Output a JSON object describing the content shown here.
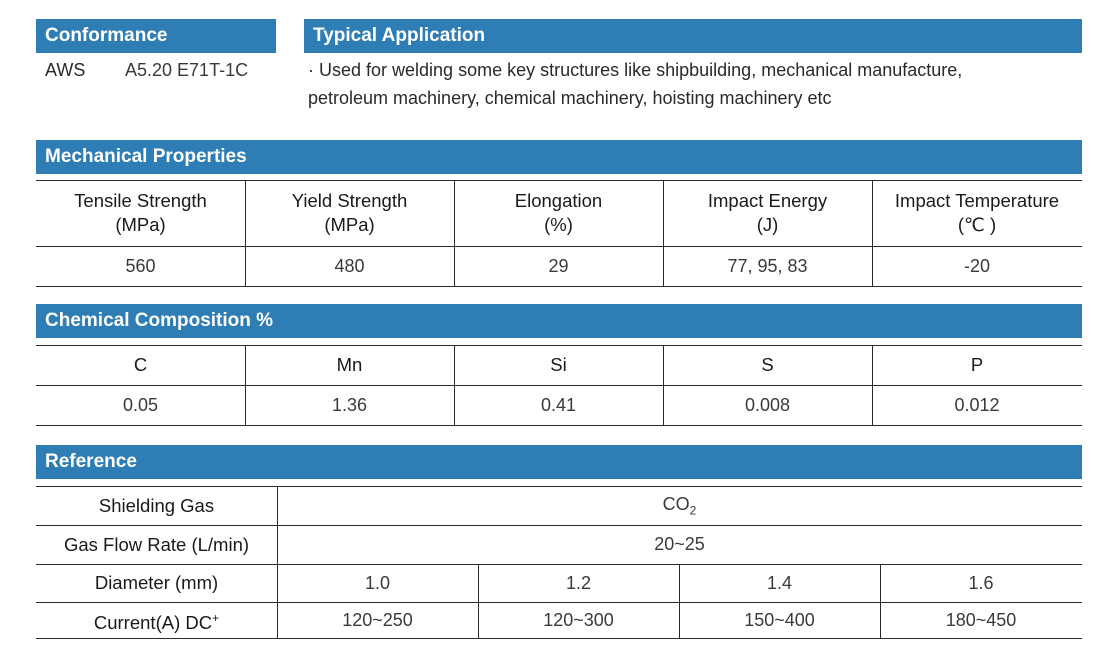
{
  "conformance": {
    "title": "Conformance",
    "standard": "AWS",
    "class": "A5.20 E71T-1C"
  },
  "application": {
    "title": "Typical Application",
    "line1": "· Used for welding some key structures like shipbuilding, mechanical manufacture,",
    "line2": "petroleum machinery, chemical machinery, hoisting machinery etc"
  },
  "mechanical": {
    "title": "Mechanical Properties",
    "headers": [
      {
        "name": "Tensile Strength",
        "unit": "(MPa)"
      },
      {
        "name": "Yield Strength",
        "unit": "(MPa)"
      },
      {
        "name": "Elongation",
        "unit": "(%)"
      },
      {
        "name": "Impact Energy",
        "unit": "(J)"
      },
      {
        "name": "Impact Temperature",
        "unit": "(℃ )"
      }
    ],
    "values": [
      "560",
      "480",
      "29",
      "77, 95, 83",
      "-20"
    ]
  },
  "chemical": {
    "title": "Chemical Composition %",
    "headers": [
      "C",
      "Mn",
      "Si",
      "S",
      "P"
    ],
    "values": [
      "0.05",
      "1.36",
      "0.41",
      "0.008",
      "0.012"
    ]
  },
  "reference": {
    "title": "Reference",
    "shielding_gas_label": "Shielding Gas",
    "shielding_gas_main": "CO",
    "shielding_gas_sub": "2",
    "flow_label": "Gas Flow Rate (L/min)",
    "flow_value": "20~25",
    "diameter_label": "Diameter (mm)",
    "diameters": [
      "1.0",
      "1.2",
      "1.4",
      "1.6"
    ],
    "current_label": "Current(A) DC",
    "current_sup": "+",
    "currents": [
      "120~250",
      "120~300",
      "150~400",
      "180~450"
    ]
  }
}
